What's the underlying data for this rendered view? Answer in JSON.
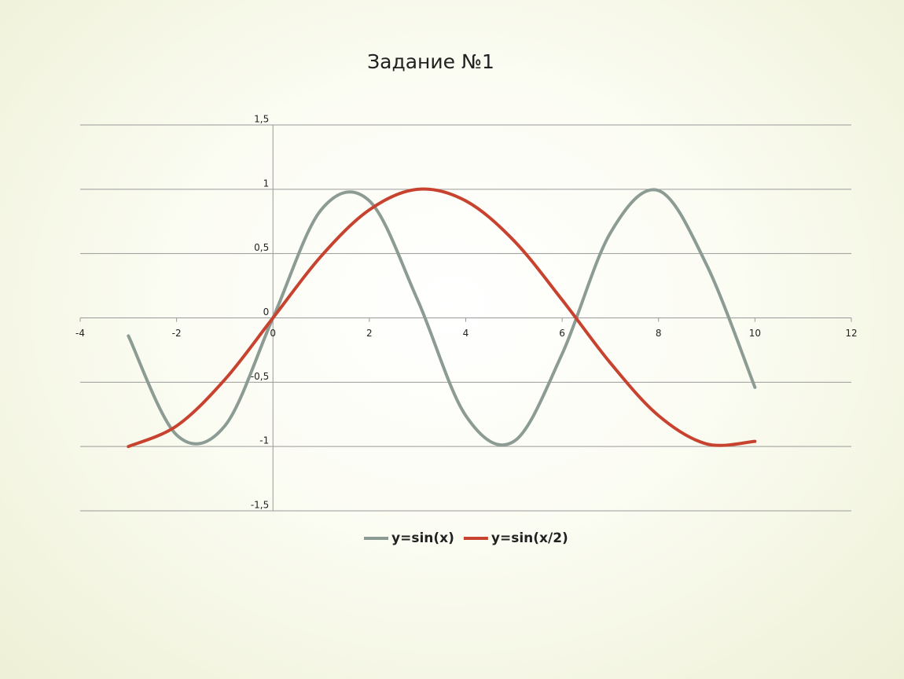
{
  "chart_data": {
    "type": "line",
    "title": "Задание №1",
    "x": [
      -3,
      -2,
      -1,
      0,
      1,
      2,
      3,
      4,
      5,
      6,
      7,
      8,
      9,
      10
    ],
    "series": [
      {
        "name": "y=sin(x)",
        "color": "#8c9c94",
        "values": [
          -0.14,
          -0.91,
          -0.84,
          0,
          0.84,
          0.91,
          0.14,
          -0.76,
          -0.96,
          -0.28,
          0.66,
          0.99,
          0.41,
          -0.54
        ]
      },
      {
        "name": "y=sin(x/2)",
        "color": "#c8432f",
        "values": [
          -1.0,
          -0.84,
          -0.48,
          0,
          0.48,
          0.84,
          1.0,
          0.91,
          0.6,
          0.14,
          -0.35,
          -0.76,
          -0.98,
          -0.96
        ]
      }
    ],
    "xlim": [
      -4,
      12
    ],
    "xticks": [
      -4,
      -2,
      0,
      2,
      4,
      6,
      8,
      10,
      12
    ],
    "ylim": [
      -1.5,
      1.5
    ],
    "yticks": [
      {
        "value": -1.5,
        "label": "-1,5"
      },
      -1,
      {
        "value": -0.5,
        "label": "-0,5"
      },
      0,
      {
        "value": 0.5,
        "label": "0,5"
      },
      1,
      {
        "value": 1.5,
        "label": "1,5"
      }
    ],
    "grid": true,
    "legend": "bottom",
    "smooth": true
  }
}
